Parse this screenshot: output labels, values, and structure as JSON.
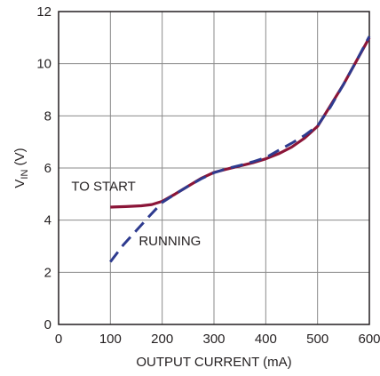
{
  "chart_data": {
    "type": "line",
    "xlabel": "OUTPUT CURRENT (mA)",
    "ylabel": {
      "main": "V",
      "sub": "IN",
      "unit": " (V)"
    },
    "xlim": [
      0,
      600
    ],
    "ylim": [
      0,
      12
    ],
    "x_ticks": [
      0,
      100,
      200,
      300,
      400,
      500,
      600
    ],
    "y_ticks": [
      0,
      2,
      4,
      6,
      8,
      10,
      12
    ],
    "x_tick_labels": [
      "0",
      "100",
      "200",
      "300",
      "400",
      "500",
      "600"
    ],
    "y_tick_labels": [
      "0",
      "2",
      "4",
      "6",
      "8",
      "10",
      "12"
    ],
    "grid": true,
    "series": [
      {
        "name": "TO START",
        "color": "#8b1538",
        "style": "solid",
        "points": [
          [
            100,
            4.5
          ],
          [
            130,
            4.52
          ],
          [
            160,
            4.55
          ],
          [
            180,
            4.6
          ],
          [
            200,
            4.72
          ],
          [
            225,
            5.0
          ],
          [
            250,
            5.3
          ],
          [
            275,
            5.6
          ],
          [
            300,
            5.83
          ],
          [
            325,
            5.96
          ],
          [
            350,
            6.08
          ],
          [
            375,
            6.2
          ],
          [
            400,
            6.35
          ],
          [
            425,
            6.55
          ],
          [
            450,
            6.8
          ],
          [
            475,
            7.15
          ],
          [
            500,
            7.6
          ],
          [
            525,
            8.4
          ],
          [
            550,
            9.2
          ],
          [
            575,
            10.1
          ],
          [
            600,
            11.0
          ]
        ]
      },
      {
        "name": "RUNNING",
        "color": "#2e3b8f",
        "style": "dashed",
        "points": [
          [
            100,
            2.4
          ],
          [
            125,
            3.05
          ],
          [
            150,
            3.6
          ],
          [
            175,
            4.15
          ],
          [
            200,
            4.68
          ],
          [
            225,
            5.0
          ],
          [
            250,
            5.3
          ],
          [
            275,
            5.58
          ],
          [
            300,
            5.82
          ],
          [
            325,
            5.98
          ],
          [
            350,
            6.1
          ],
          [
            375,
            6.24
          ],
          [
            400,
            6.4
          ],
          [
            425,
            6.68
          ],
          [
            450,
            6.95
          ],
          [
            475,
            7.25
          ],
          [
            500,
            7.62
          ],
          [
            525,
            8.35
          ],
          [
            550,
            9.2
          ],
          [
            575,
            10.1
          ],
          [
            600,
            11.05
          ]
        ]
      }
    ],
    "annotations": [
      {
        "text": "TO START",
        "x": 100,
        "y": 5.3,
        "anchor": "start"
      },
      {
        "text": "RUNNING",
        "x": 148,
        "y": 3.2,
        "anchor": "start"
      }
    ]
  }
}
